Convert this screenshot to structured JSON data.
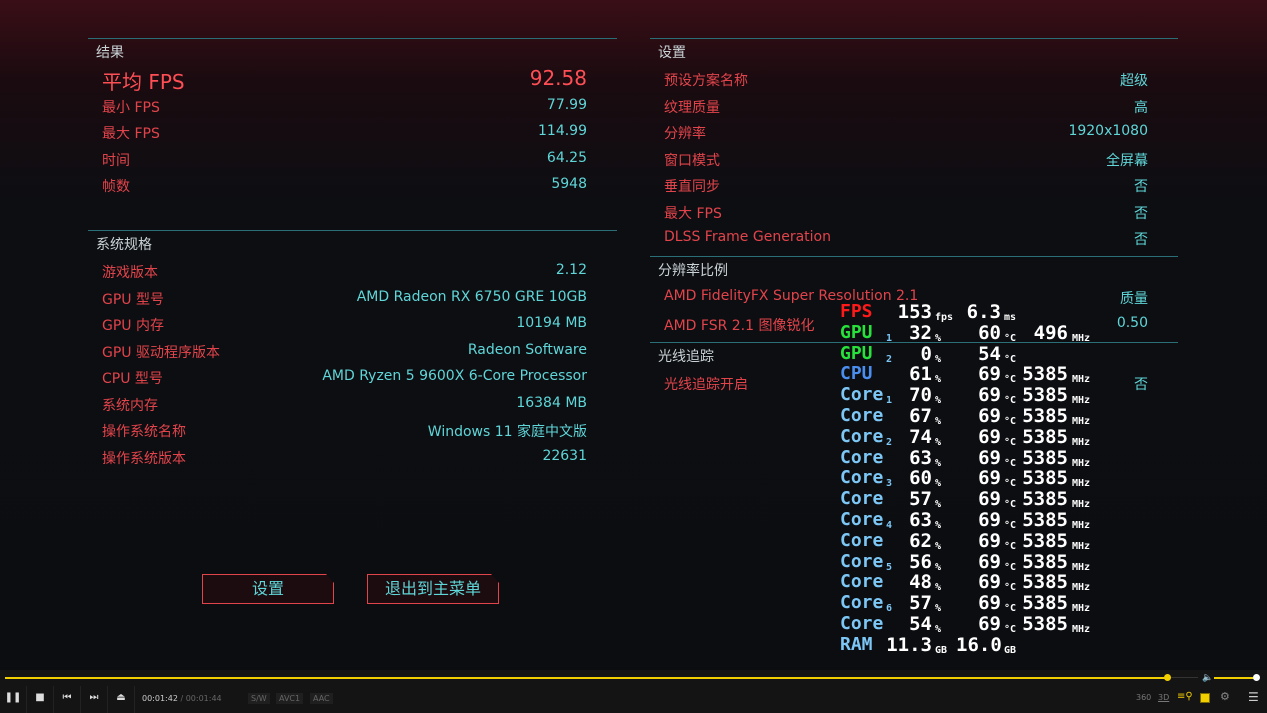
{
  "results": {
    "title": "结果",
    "rows": [
      {
        "k": "平均 FPS",
        "v": "92.58"
      },
      {
        "k": "最小 FPS",
        "v": "77.99"
      },
      {
        "k": "最大 FPS",
        "v": "114.99"
      },
      {
        "k": "时间",
        "v": "64.25"
      },
      {
        "k": "帧数",
        "v": "5948"
      }
    ]
  },
  "specs": {
    "title": "系统规格",
    "rows": [
      {
        "k": "游戏版本",
        "v": "2.12"
      },
      {
        "k": "GPU 型号",
        "v": "AMD Radeon RX 6750 GRE 10GB"
      },
      {
        "k": "GPU 内存",
        "v": "10194 MB"
      },
      {
        "k": "GPU 驱动程序版本",
        "v": "Radeon Software"
      },
      {
        "k": "CPU 型号",
        "v": "AMD Ryzen 5 9600X 6-Core Processor"
      },
      {
        "k": "系统内存",
        "v": "16384 MB"
      },
      {
        "k": "操作系统名称",
        "v": "Windows 11 家庭中文版"
      },
      {
        "k": "操作系统版本",
        "v": "22631"
      }
    ]
  },
  "settings": {
    "title": "设置",
    "rows": [
      {
        "k": "预设方案名称",
        "v": "超级"
      },
      {
        "k": "纹理质量",
        "v": "高"
      },
      {
        "k": "分辨率",
        "v": "1920x1080"
      },
      {
        "k": "窗口模式",
        "v": "全屏幕"
      },
      {
        "k": "垂直同步",
        "v": "否"
      },
      {
        "k": "最大 FPS",
        "v": "否"
      },
      {
        "k": "DLSS Frame Generation",
        "v": "否"
      }
    ]
  },
  "scaling": {
    "title": "分辨率比例",
    "rows": [
      {
        "k": "AMD FidelityFX Super Resolution 2.1",
        "v": "质量"
      },
      {
        "k": "AMD FSR 2.1 图像锐化",
        "v": "0.50"
      }
    ]
  },
  "raytracing": {
    "title": "光线追踪",
    "rows": [
      {
        "k": "光线追踪开启",
        "v": "否"
      }
    ]
  },
  "buttons": {
    "settings": "设置",
    "exit": "退出到主菜单"
  },
  "overlay": [
    {
      "label": "FPS",
      "color": "#ff1a1a",
      "a": "153",
      "au": "fps",
      "b": "6.3",
      "bu": "ms",
      "c": "",
      "cu": ""
    },
    {
      "label": "GPU",
      "sub": "1",
      "color": "#27e23a",
      "a": "32",
      "au": "%",
      "b": "60",
      "bu": "°C",
      "c": "496",
      "cu": "MHz"
    },
    {
      "label": "GPU",
      "sub": "2",
      "color": "#27e23a",
      "a": "0",
      "au": "%",
      "b": "54",
      "bu": "°C",
      "c": "",
      "cu": ""
    },
    {
      "label": "CPU",
      "color": "#4a8ff0",
      "a": "61",
      "au": "%",
      "b": "69",
      "bu": "°C",
      "c": "5385",
      "cu": "MHz"
    },
    {
      "label": "Core",
      "sub": "1",
      "color": "#7cc7f5",
      "a": "70",
      "au": "%",
      "b": "69",
      "bu": "°C",
      "c": "5385",
      "cu": "MHz"
    },
    {
      "label": "Core",
      "color": "#7cc7f5",
      "a": "67",
      "au": "%",
      "b": "69",
      "bu": "°C",
      "c": "5385",
      "cu": "MHz"
    },
    {
      "label": "Core",
      "sub": "2",
      "color": "#7cc7f5",
      "a": "74",
      "au": "%",
      "b": "69",
      "bu": "°C",
      "c": "5385",
      "cu": "MHz"
    },
    {
      "label": "Core",
      "color": "#7cc7f5",
      "a": "63",
      "au": "%",
      "b": "69",
      "bu": "°C",
      "c": "5385",
      "cu": "MHz"
    },
    {
      "label": "Core",
      "sub": "3",
      "color": "#7cc7f5",
      "a": "60",
      "au": "%",
      "b": "69",
      "bu": "°C",
      "c": "5385",
      "cu": "MHz"
    },
    {
      "label": "Core",
      "color": "#7cc7f5",
      "a": "57",
      "au": "%",
      "b": "69",
      "bu": "°C",
      "c": "5385",
      "cu": "MHz"
    },
    {
      "label": "Core",
      "sub": "4",
      "color": "#7cc7f5",
      "a": "63",
      "au": "%",
      "b": "69",
      "bu": "°C",
      "c": "5385",
      "cu": "MHz"
    },
    {
      "label": "Core",
      "color": "#7cc7f5",
      "a": "62",
      "au": "%",
      "b": "69",
      "bu": "°C",
      "c": "5385",
      "cu": "MHz"
    },
    {
      "label": "Core",
      "sub": "5",
      "color": "#7cc7f5",
      "a": "56",
      "au": "%",
      "b": "69",
      "bu": "°C",
      "c": "5385",
      "cu": "MHz"
    },
    {
      "label": "Core",
      "color": "#7cc7f5",
      "a": "48",
      "au": "%",
      "b": "69",
      "bu": "°C",
      "c": "5385",
      "cu": "MHz"
    },
    {
      "label": "Core",
      "sub": "6",
      "color": "#7cc7f5",
      "a": "57",
      "au": "%",
      "b": "69",
      "bu": "°C",
      "c": "5385",
      "cu": "MHz"
    },
    {
      "label": "Core",
      "color": "#7cc7f5",
      "a": "54",
      "au": "%",
      "b": "69",
      "bu": "°C",
      "c": "5385",
      "cu": "MHz"
    },
    {
      "label": "RAM",
      "color": "#7cc7f5",
      "a": "11.3",
      "au": "GB",
      "b": "16.0",
      "bu": "GB",
      "c": "",
      "cu": ""
    }
  ],
  "player": {
    "current_time": "00:01:42",
    "total_time": "00:01:44",
    "tags": [
      "S/W",
      "AVC1",
      "AAC"
    ],
    "progress": 0.98,
    "volume": 1.0,
    "accent": "#f2d000",
    "right_icons": [
      "360",
      "3D"
    ]
  }
}
